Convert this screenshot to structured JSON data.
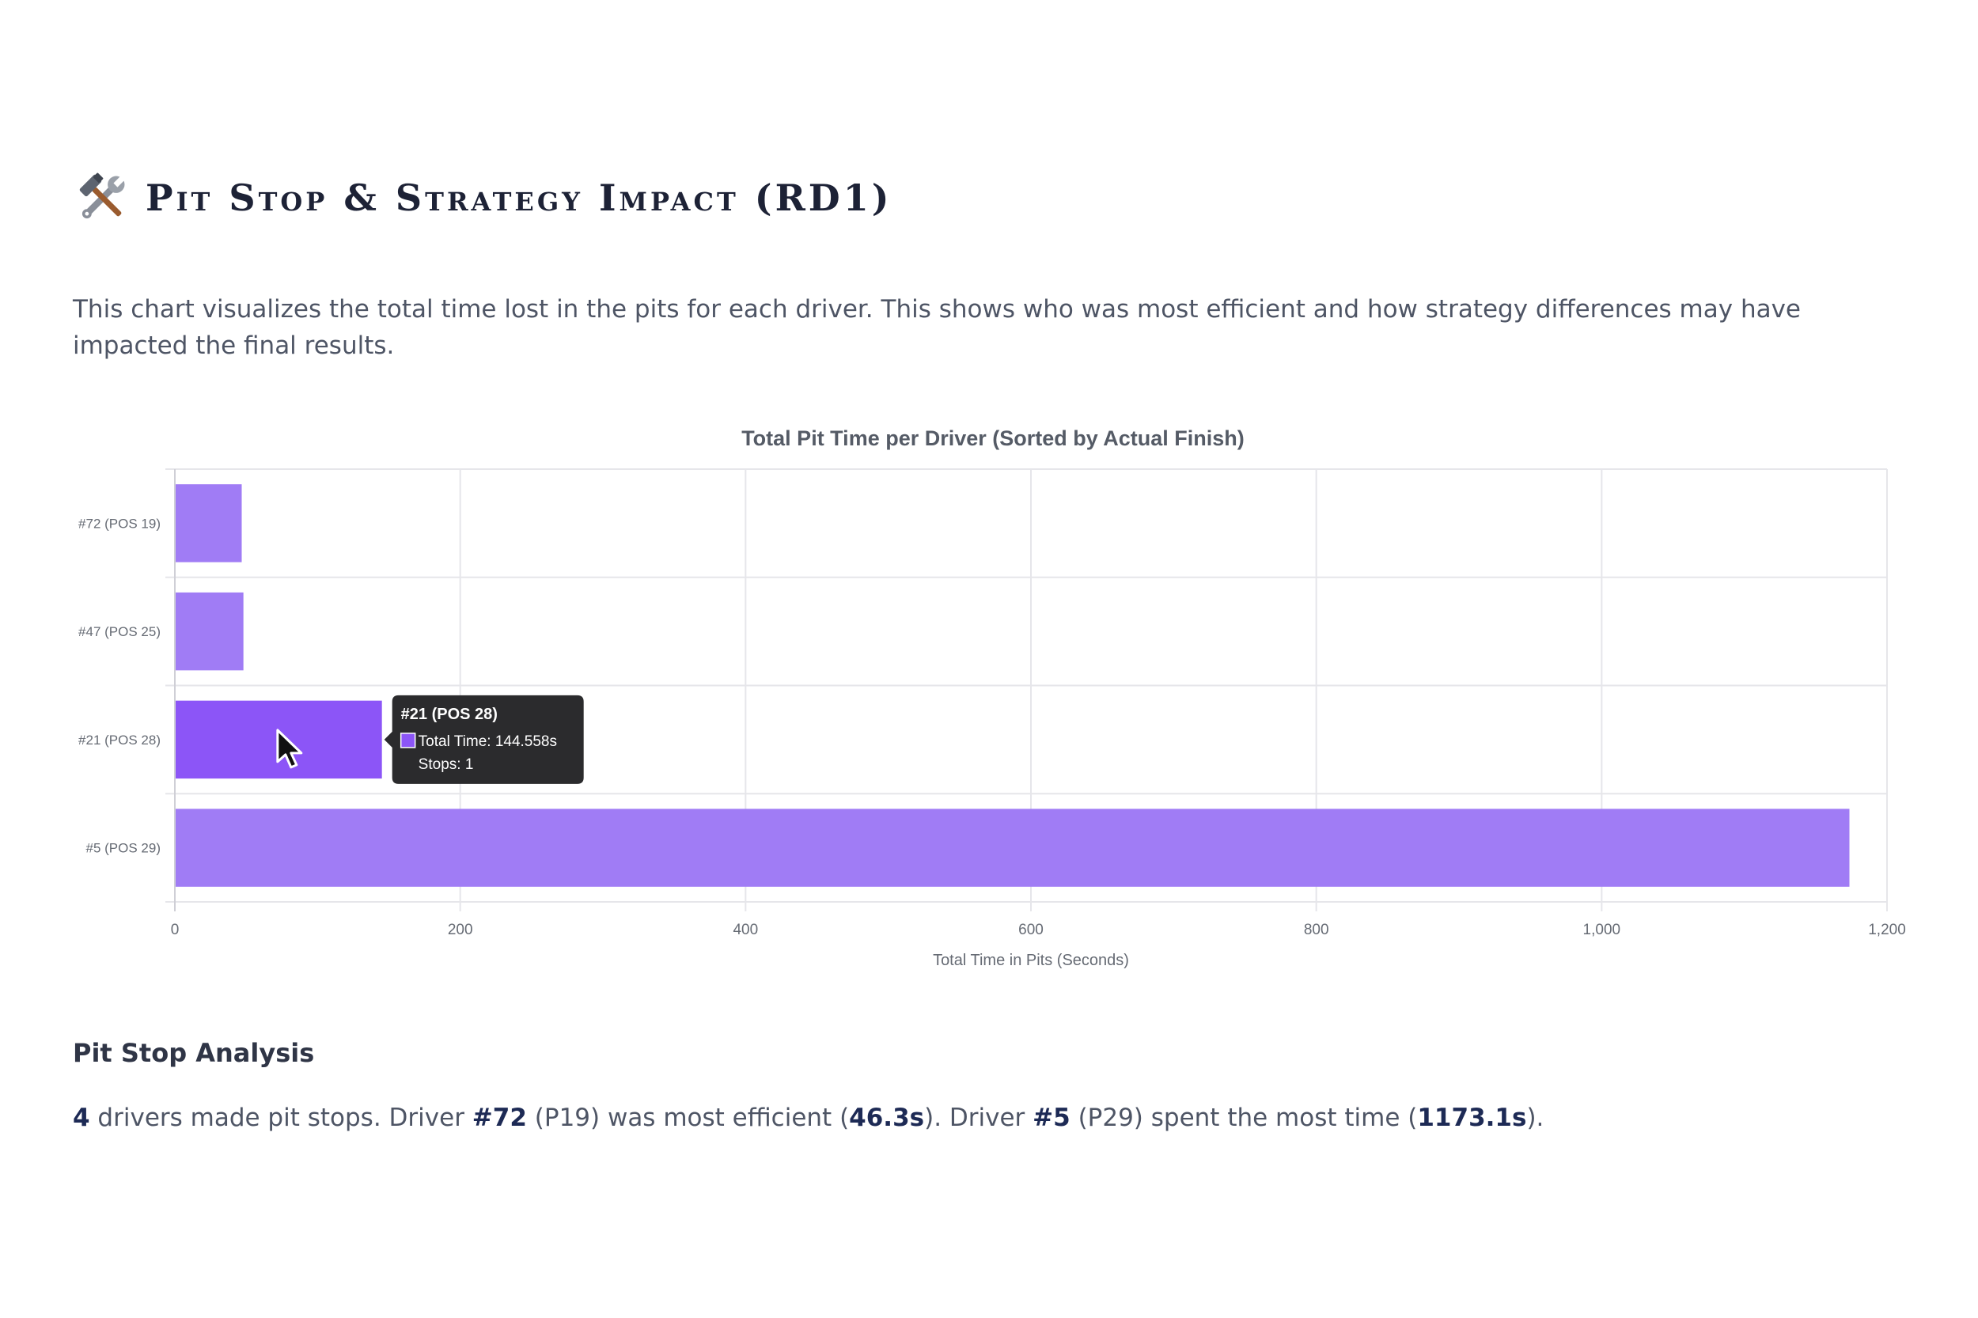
{
  "section": {
    "icon": "hammer-and-wrench-icon",
    "title": "Pit Stop & Strategy Impact (RD1)",
    "description": "This chart visualizes the total time lost in the pits for each driver. This shows who was most efficient and how strategy differences may have impacted the final results."
  },
  "chart_data": {
    "type": "bar",
    "orientation": "horizontal",
    "title": "Total Pit Time per Driver (Sorted by Actual Finish)",
    "xlabel": "Total Time in Pits (Seconds)",
    "ylabel": "",
    "xlim": [
      0,
      1200
    ],
    "xticks": [
      "0",
      "200",
      "400",
      "600",
      "800",
      "1,000",
      "1,200"
    ],
    "xtick_values": [
      0,
      200,
      400,
      600,
      800,
      1000,
      1200
    ],
    "grid": true,
    "categories": [
      "#72 (POS 19)",
      "#47 (POS 25)",
      "#21 (POS 28)",
      "#5 (POS 29)"
    ],
    "values": [
      46.3,
      47.5,
      144.558,
      1173.1
    ],
    "colors": {
      "bar": "#a07cf5",
      "bar_active": "#8c55f7",
      "grid": "#e6e6ea"
    },
    "active_index": 2,
    "tooltip": {
      "title": "#21 (POS 28)",
      "line1": "Total Time: 144.558s",
      "line2": "Stops: 1"
    }
  },
  "analysis": {
    "heading": "Pit Stop Analysis",
    "count": "4",
    "t1": " drivers made pit stops. Driver ",
    "best_driver": "#72",
    "t2": " (P19) was most efficient (",
    "best_time": "46.3s",
    "t3": "). Driver ",
    "worst_driver": "#5",
    "t4": " (P29) spent the most time (",
    "worst_time": "1173.1s",
    "t5": ")."
  }
}
